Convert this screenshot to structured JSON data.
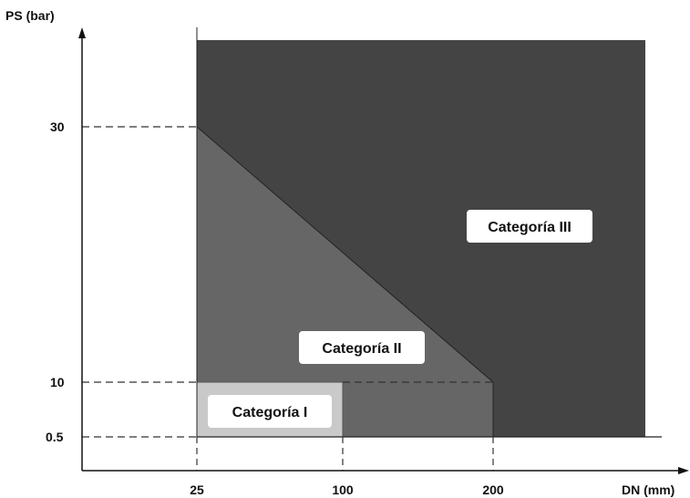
{
  "axes": {
    "y_title": "PS (bar)",
    "x_title": "DN (mm)"
  },
  "y_ticks": [
    {
      "value": 30,
      "label": "30"
    },
    {
      "value": 10,
      "label": "10"
    },
    {
      "value": 0.5,
      "label": "0.5"
    }
  ],
  "x_ticks": [
    {
      "value": 25,
      "label": "25"
    },
    {
      "value": 100,
      "label": "100"
    },
    {
      "value": 200,
      "label": "200"
    }
  ],
  "regions": [
    {
      "id": "categoria-iii",
      "label": "Categoría III",
      "color": "#444444"
    },
    {
      "id": "categoria-ii",
      "label": "Categoría II",
      "color": "#666666"
    },
    {
      "id": "categoria-i",
      "label": "Categoría I",
      "color": "#c9c9c9"
    }
  ],
  "colors": {
    "axis": "#111111",
    "dashes": "#333333",
    "label_box": "#ffffff"
  }
}
